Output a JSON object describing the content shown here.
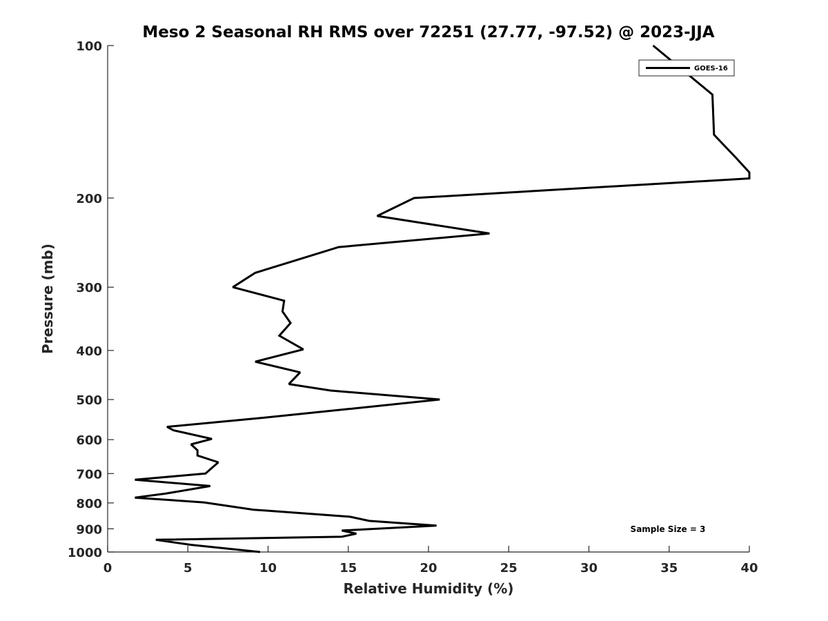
{
  "chart_data": {
    "type": "line",
    "title": "Meso 2 Seasonal RH RMS over 72251 (27.77, -97.52) @ 2023-JJA",
    "xlabel": "Relative Humidity (%)",
    "ylabel": "Pressure (mb)",
    "xlim": [
      0,
      40
    ],
    "ylim": [
      100,
      1000
    ],
    "y_scale": "log",
    "y_reversed": true,
    "x_ticks": [
      "0",
      "5",
      "10",
      "15",
      "20",
      "25",
      "30",
      "35",
      "40"
    ],
    "y_ticks": [
      "100",
      "200",
      "300",
      "400",
      "500",
      "600",
      "700",
      "800",
      "900",
      "1000"
    ],
    "grid": false,
    "legend_position": "top-right",
    "annotation": "Sample Size = 3",
    "series": [
      {
        "name": "GOES-16",
        "color": "#000000",
        "x": [
          34,
          37.7,
          37.8,
          39.2,
          40.0,
          40.0,
          19.1,
          16.8,
          23.8,
          14.4,
          9.2,
          7.8,
          11.0,
          10.9,
          11.4,
          10.7,
          12.2,
          9.2,
          12.0,
          11.3,
          13.9,
          20.7,
          15.0,
          9.5,
          3.7,
          4.1,
          6.5,
          5.2,
          5.6,
          5.6,
          6.9,
          6.1,
          1.7,
          6.4,
          3.6,
          1.7,
          6.0,
          9.1,
          15.1,
          16.3,
          20.5,
          14.6,
          15.5,
          14.6,
          3.0,
          5.2,
          9.5
        ],
        "y": [
          100,
          125,
          150,
          167,
          178,
          183,
          200,
          217,
          235,
          250,
          281,
          300,
          319,
          335,
          353,
          374,
          398,
          421,
          442,
          466,
          480,
          500,
          522,
          544,
          566,
          575,
          598,
          613,
          630,
          645,
          665,
          700,
          720,
          741,
          767,
          781,
          798,
          825,
          852,
          868,
          887,
          907,
          920,
          933,
          946,
          968,
          1000
        ]
      }
    ]
  }
}
